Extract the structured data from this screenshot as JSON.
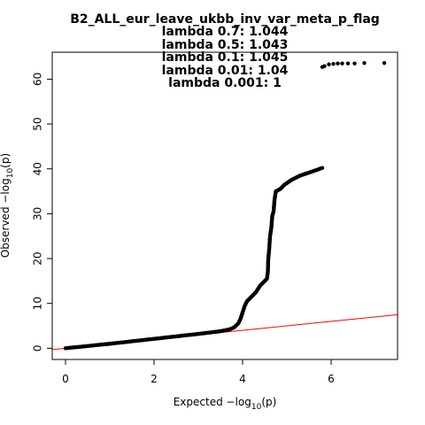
{
  "chart_data": {
    "type": "scatter",
    "title_lines": [
      "B2_ALL_eur_leave_ukbb_inv_var_meta_p_flag",
      "lambda 0.7: 1.044",
      "lambda 0.5: 1.043",
      "lambda 0.1: 1.045",
      "lambda 0.01: 1.04",
      "lambda 0.001: 1"
    ],
    "xlabel": {
      "prefix": "Expected  −log",
      "sub": "10",
      "suffix": "(p)"
    },
    "ylabel": {
      "prefix": "Observed  −log",
      "sub": "10",
      "suffix": "(p)"
    },
    "xlim": [
      -0.3,
      7.5
    ],
    "ylim": [
      -2.5,
      66
    ],
    "x_ticks": [
      0,
      2,
      4,
      6
    ],
    "y_ticks": [
      0,
      10,
      20,
      30,
      40,
      50,
      60
    ],
    "grid": false,
    "colors": {
      "points": "#000000",
      "reference_line": "#ff0000",
      "axes": "#000000"
    },
    "reference_line": {
      "x": [
        -0.3,
        7.5
      ],
      "y": [
        -0.3,
        7.5
      ]
    },
    "points_curve": [
      [
        0.0,
        0.0
      ],
      [
        1.0,
        1.0
      ],
      [
        2.0,
        2.1
      ],
      [
        3.0,
        3.2
      ],
      [
        3.5,
        3.8
      ],
      [
        3.7,
        4.2
      ],
      [
        3.8,
        4.6
      ],
      [
        3.9,
        5.5
      ],
      [
        3.95,
        6.5
      ],
      [
        4.0,
        8.0
      ],
      [
        4.05,
        9.5
      ],
      [
        4.1,
        10.5
      ],
      [
        4.2,
        11.5
      ],
      [
        4.3,
        12.5
      ],
      [
        4.4,
        14.0
      ],
      [
        4.5,
        15.0
      ],
      [
        4.55,
        15.5
      ],
      [
        4.57,
        17.0
      ],
      [
        4.58,
        20.0
      ],
      [
        4.6,
        22.0
      ],
      [
        4.62,
        25.0
      ],
      [
        4.65,
        27.0
      ],
      [
        4.67,
        29.5
      ],
      [
        4.7,
        30.5
      ],
      [
        4.72,
        33.0
      ],
      [
        4.75,
        35.0
      ],
      [
        4.85,
        35.5
      ],
      [
        4.95,
        36.5
      ],
      [
        5.1,
        37.5
      ],
      [
        5.3,
        38.5
      ],
      [
        5.6,
        39.5
      ],
      [
        5.8,
        40.2
      ]
    ],
    "points_top": [
      [
        5.8,
        62.7
      ],
      [
        5.85,
        62.9
      ],
      [
        5.95,
        63.3
      ],
      [
        6.05,
        63.4
      ],
      [
        6.15,
        63.5
      ],
      [
        6.25,
        63.5
      ],
      [
        6.38,
        63.5
      ],
      [
        6.53,
        63.5
      ],
      [
        6.75,
        63.6
      ],
      [
        7.2,
        63.6
      ]
    ]
  }
}
